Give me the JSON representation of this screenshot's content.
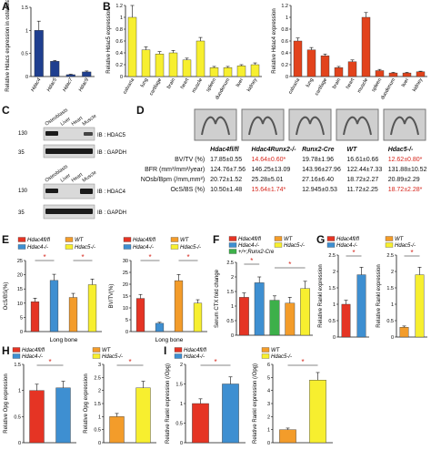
{
  "panels": {
    "A": "A",
    "B": "B",
    "C": "C",
    "D": "D",
    "E": "E",
    "F": "F",
    "G": "G",
    "H": "H",
    "I": "I"
  },
  "colors": {
    "blue_dark": "#1f3f8f",
    "yellow": "#f7ef2f",
    "red_orange": "#e2431c",
    "red": "#e53424",
    "blue": "#3e8fd1",
    "orange": "#f39c2a",
    "green": "#3db04a",
    "text_red": "#d6261c"
  },
  "panel_c": {
    "blot1": {
      "lanes": [
        "Osteoblasts",
        "Liver",
        "Heart",
        "Muscle"
      ],
      "markers": [
        "130",
        "35"
      ],
      "labels": [
        "IB : HDAC5",
        "IB : GAPDH"
      ]
    },
    "blot2": {
      "lanes": [
        "Osteoblasts",
        "Liver",
        "Heart",
        "Muscle"
      ],
      "markers": [
        "130",
        "35"
      ],
      "labels": [
        "IB : HDAC4",
        "IB : GAPDH"
      ]
    }
  },
  "panel_d": {
    "columns": [
      "Hdac4fl/fl",
      "Hdac4Runx2-/-",
      "Runx2-Cre",
      "WT",
      "Hdac5-/-"
    ],
    "rows": [
      {
        "label": "BV/TV (%)",
        "values": [
          "17.85±0.55",
          "14.64±0.60*",
          "19.78±1.96",
          "16.61±0.66",
          "12.62±0.80*"
        ],
        "red": [
          false,
          true,
          false,
          false,
          true
        ]
      },
      {
        "label": "BFR (mm³/mm²/year)",
        "values": [
          "124.76±7.56",
          "146.25±13.09",
          "143.96±27.96",
          "122.44±7.33",
          "131.88±10.52"
        ],
        "red": [
          false,
          false,
          false,
          false,
          false
        ]
      },
      {
        "label": "NOsb/Bpm (/mm,mm²)",
        "values": [
          "20.72±1.52",
          "25.28±5.01",
          "27.16±6.40",
          "18.72±2.27",
          "20.89±2.29"
        ],
        "red": [
          false,
          false,
          false,
          false,
          false
        ]
      },
      {
        "label": "OcS/BS (%)",
        "values": [
          "10.50±1.48",
          "15.64±1.74*",
          "12.945±0.53",
          "11.72±2.25",
          "18.72±2.28*"
        ],
        "red": [
          false,
          true,
          false,
          false,
          true
        ]
      }
    ]
  },
  "chart_data": [
    {
      "panel": "A",
      "type": "bar",
      "categories": [
        "Hdac4",
        "Hdac5",
        "Hdac7",
        "Hdac9"
      ],
      "values": [
        1.0,
        0.33,
        0.04,
        0.1
      ],
      "ylabel": "Relative Hdacs expression in osteoblasts",
      "ylim": [
        0,
        1.5
      ],
      "yticks": [
        "0",
        "0.5",
        "1",
        "1.5"
      ]
    },
    {
      "panel": "B1",
      "type": "bar",
      "categories": [
        "calvaria",
        "lung",
        "cartilage",
        "brain",
        "heart",
        "muscle",
        "spleen",
        "duodenum",
        "liver",
        "kidney"
      ],
      "values": [
        1.0,
        0.45,
        0.38,
        0.4,
        0.28,
        0.6,
        0.15,
        0.15,
        0.18,
        0.2
      ],
      "ylabel": "Relative Hdac5 expression",
      "ylim": [
        0,
        1.2
      ],
      "yticks": [
        "0",
        "0.2",
        "0.4",
        "0.6",
        "0.8",
        "1",
        "1.2"
      ]
    },
    {
      "panel": "B2",
      "type": "bar",
      "categories": [
        "calvaria",
        "lung",
        "cartilage",
        "brain",
        "heart",
        "muscle",
        "spleen",
        "duodenum",
        "liver",
        "kidney"
      ],
      "values": [
        0.6,
        0.45,
        0.35,
        0.15,
        0.25,
        1.0,
        0.1,
        0.06,
        0.06,
        0.08
      ],
      "ylabel": "Relative Hdac4 expression",
      "ylim": [
        0,
        1.2
      ],
      "yticks": [
        "0",
        "0.2",
        "0.4",
        "0.6",
        "0.8",
        "1",
        "1.2"
      ]
    },
    {
      "panel": "E1",
      "type": "bar",
      "xlabel": "Long bone",
      "categories": [
        "Hdac4fl/fl",
        "Hdac4-/-",
        "WT",
        "Hdac5-/-"
      ],
      "values": [
        10.5,
        18.0,
        12.0,
        16.5
      ],
      "ylabel": "OcS/BS(%)",
      "ylim": [
        0,
        25
      ],
      "yticks": [
        "0",
        "5",
        "10",
        "15",
        "20",
        "25"
      ],
      "legend": [
        "Hdac4fl/fl",
        "Hdac4-/-",
        "WT",
        "Hdac5-/-"
      ]
    },
    {
      "panel": "E2",
      "type": "bar",
      "xlabel": "Long bone",
      "categories": [
        "Hdac4fl/fl",
        "Hdac4-/-",
        "WT",
        "Hdac5-/-"
      ],
      "values": [
        14.0,
        3.5,
        21.5,
        12.0
      ],
      "ylabel": "BV/TV(%)",
      "ylim": [
        0,
        30
      ],
      "yticks": [
        "0",
        "5",
        "10",
        "15",
        "20",
        "25",
        "30"
      ],
      "legend": [
        "Hdac4fl/fl",
        "Hdac4-/-",
        "WT",
        "Hdac5-/-"
      ]
    },
    {
      "panel": "F",
      "type": "bar",
      "categories": [
        "Hdac4fl/fl",
        "Hdac4-/-",
        "WT",
        "+/+;Runx2-Cre",
        "Hdac5-/-"
      ],
      "values": [
        1.3,
        1.8,
        1.2,
        1.1,
        1.6
      ],
      "ylabel": "Serum CTX fold change",
      "ylim": [
        0,
        2.5
      ],
      "yticks": [
        "0",
        "0.5",
        "1",
        "1.5",
        "2",
        "2.5"
      ],
      "legend": [
        "Hdac4fl/fl",
        "Hdac4-/-",
        "WT",
        "+/+;Runx2-Cre",
        "Hdac5-/-"
      ]
    },
    {
      "panel": "G1",
      "type": "bar",
      "categories": [
        "Hdac4fl/fl",
        "Hdac4-/-"
      ],
      "values": [
        1.0,
        1.9
      ],
      "ylabel": "Relative Rankl expression",
      "ylim": [
        0,
        2.5
      ],
      "yticks": [
        "0",
        "0.5",
        "1",
        "1.5",
        "2",
        "2.5"
      ],
      "legend": [
        "Hdac4fl/fl",
        "Hdac4-/-"
      ]
    },
    {
      "panel": "G2",
      "type": "bar",
      "categories": [
        "WT",
        "Hdac5-/-"
      ],
      "values": [
        0.3,
        1.9
      ],
      "ylabel": "Relative Rankl expression",
      "ylim": [
        0,
        2.5
      ],
      "yticks": [
        "0",
        "0.5",
        "1",
        "1.5",
        "2",
        "2.5"
      ],
      "legend": [
        "WT",
        "Hdac5-/-"
      ]
    },
    {
      "panel": "H1",
      "type": "bar",
      "categories": [
        "Hdac4fl/fl",
        "Hdac4-/-"
      ],
      "values": [
        1.0,
        1.05
      ],
      "ylabel": "Relative Opg expression",
      "ylim": [
        0,
        1.5
      ],
      "yticks": [
        "0",
        "0.5",
        "1",
        "1.5"
      ],
      "legend": [
        "Hdac4fl/fl",
        "Hdac4-/-"
      ]
    },
    {
      "panel": "H2",
      "type": "bar",
      "categories": [
        "WT",
        "Hdac5-/-"
      ],
      "values": [
        1.0,
        2.1
      ],
      "ylabel": "Relative Opg expression",
      "ylim": [
        0,
        3
      ],
      "yticks": [
        "0",
        "0.5",
        "1",
        "1.5",
        "2",
        "2.5",
        "3"
      ],
      "legend": [
        "WT",
        "Hdac5-/-"
      ]
    },
    {
      "panel": "I1",
      "type": "bar",
      "categories": [
        "Hdac4fl/fl",
        "Hdac4-/-"
      ],
      "values": [
        1.0,
        1.5
      ],
      "ylabel": "Relative Rankl expression (/Opg)",
      "ylim": [
        0,
        2
      ],
      "yticks": [
        "0",
        "0.5",
        "1",
        "1.5",
        "2"
      ],
      "legend": [
        "Hdac4fl/fl",
        "Hdac4-/-"
      ]
    },
    {
      "panel": "I2",
      "type": "bar",
      "categories": [
        "WT",
        "Hdac5-/-"
      ],
      "values": [
        1.0,
        4.8
      ],
      "ylabel": "Relative Rankl expression (/Opg)",
      "ylim": [
        0,
        6
      ],
      "yticks": [
        "0",
        "1",
        "2",
        "3",
        "4",
        "5",
        "6"
      ],
      "legend": [
        "WT",
        "Hdac5-/-"
      ]
    }
  ]
}
